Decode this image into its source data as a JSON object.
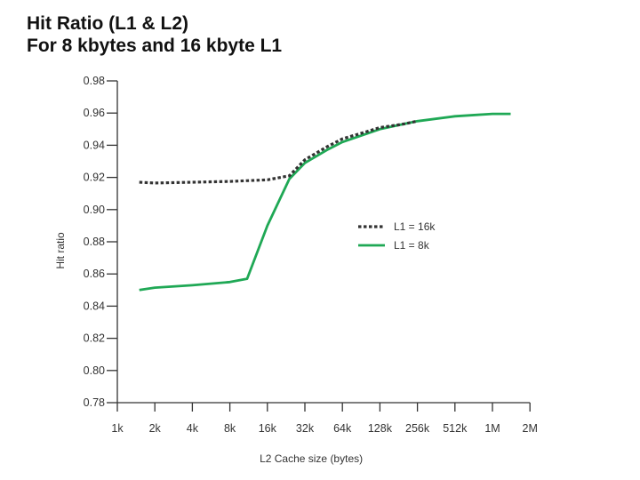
{
  "chart_data": {
    "type": "line",
    "title": "Hit Ratio (L1 & L2)",
    "subtitle": "For 8 kbytes and 16 kbyte L1",
    "xlabel": "L2 Cache size (bytes)",
    "ylabel": "Hit ratio",
    "x_scale": "log2",
    "categories": [
      "1k",
      "2k",
      "4k",
      "8k",
      "16k",
      "32k",
      "64k",
      "128k",
      "256k",
      "512k",
      "1M",
      "2M"
    ],
    "ylim": [
      0.78,
      0.98
    ],
    "yticks": [
      0.78,
      0.8,
      0.82,
      0.84,
      0.86,
      0.88,
      0.9,
      0.92,
      0.94,
      0.96,
      0.98
    ],
    "ytick_labels": [
      "0.78",
      "0.80",
      "0.82",
      "0.84",
      "0.86",
      "0.88",
      "0.90",
      "0.92",
      "0.94",
      "0.96",
      "0.98"
    ],
    "grid": false,
    "legend_position": "center-right",
    "series": [
      {
        "name": "L1 = 16k",
        "style": "dotted",
        "color": "#333333",
        "points": [
          [
            "1.5k",
            0.917
          ],
          [
            "2k",
            0.9165
          ],
          [
            "4k",
            0.917
          ],
          [
            "8k",
            0.9175
          ],
          [
            "16k",
            0.9185
          ],
          [
            "24k",
            0.921
          ],
          [
            "32k",
            0.931
          ],
          [
            "48k",
            0.939
          ],
          [
            "64k",
            0.944
          ],
          [
            "96k",
            0.948
          ],
          [
            "128k",
            0.951
          ],
          [
            "192k",
            0.953
          ],
          [
            "256k",
            0.955
          ]
        ]
      },
      {
        "name": "L1 = 8k",
        "style": "solid",
        "color": "#1fa855",
        "points": [
          [
            "1.5k",
            0.85
          ],
          [
            "2k",
            0.8515
          ],
          [
            "4k",
            0.853
          ],
          [
            "8k",
            0.855
          ],
          [
            "11k",
            0.857
          ],
          [
            "16k",
            0.89
          ],
          [
            "24k",
            0.919
          ],
          [
            "32k",
            0.929
          ],
          [
            "48k",
            0.937
          ],
          [
            "64k",
            0.942
          ],
          [
            "128k",
            0.95
          ],
          [
            "256k",
            0.955
          ],
          [
            "512k",
            0.958
          ],
          [
            "1M",
            0.9595
          ],
          [
            "1.4M",
            0.9595
          ]
        ]
      }
    ]
  }
}
